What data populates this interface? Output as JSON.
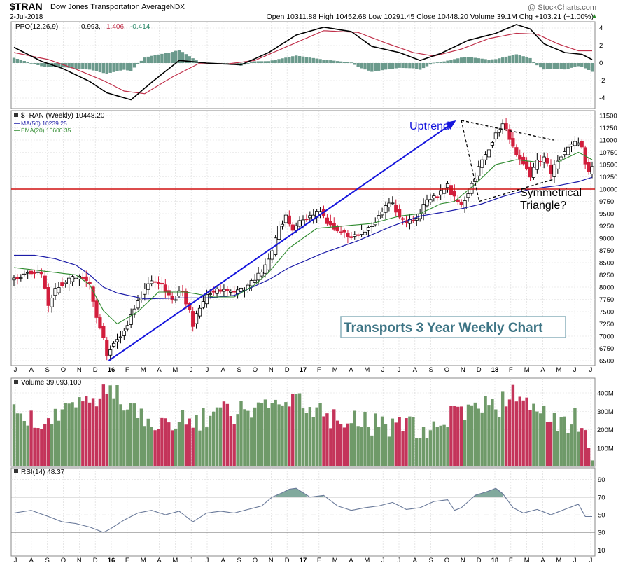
{
  "header": {
    "symbol": "$TRAN",
    "name": "Dow Jones Transportation Average",
    "exchange": "INDX",
    "date": "2-Jul-2018",
    "watermark": "@ StockCharts.com",
    "ohlc": "Open 10311.88  High 10452.68  Low 10291.45  Close 10448.20  Volume 39.1M  Chg +103.21 (+1.00%)",
    "chg_icon": "up-triangle-icon"
  },
  "ppo_panel": {
    "label": "PPO(12,26,9)",
    "v1": "0.993,",
    "v2": "1.406,",
    "v3": "-0.414",
    "ticks": [
      "4",
      "2",
      "0",
      "-2",
      "-4"
    ]
  },
  "price_panel": {
    "label": "$TRAN (Weekly) 10448.20",
    "ma50": "MA(50) 10239.25",
    "ema20": "EMA(20) 10600.35",
    "ticks": [
      "11500",
      "11250",
      "11000",
      "10750",
      "10500",
      "10250",
      "10000",
      "9750",
      "9500",
      "9250",
      "9000",
      "8750",
      "8500",
      "8250",
      "8000",
      "7750",
      "7500",
      "7250",
      "7000",
      "6750",
      "6500"
    ],
    "ann_uptrend": "Uptrend",
    "ann_tri1": "Symmetrical",
    "ann_tri2": "Triangle?",
    "title_box": "Transports 3 Year Weekly Chart"
  },
  "volume_panel": {
    "label": "Volume 39,093,100",
    "ticks": [
      "400M",
      "300M",
      "200M",
      "100M"
    ]
  },
  "rsi_panel": {
    "label": "RSI(14) 48.37",
    "ticks": [
      "90",
      "70",
      "50",
      "30",
      "10"
    ]
  },
  "x_axis": {
    "labels": [
      "J",
      "A",
      "S",
      "O",
      "N",
      "D",
      "16",
      "F",
      "M",
      "A",
      "M",
      "J",
      "J",
      "A",
      "S",
      "O",
      "N",
      "D",
      "17",
      "F",
      "M",
      "A",
      "M",
      "J",
      "J",
      "A",
      "S",
      "O",
      "N",
      "D",
      "18",
      "F",
      "M",
      "A",
      "M",
      "J",
      "J"
    ]
  },
  "colors": {
    "up": "#6a9a6a",
    "down": "#d21e3c",
    "vol_up": "#6f9a69",
    "vol_down": "#c4345a",
    "ppo_hist": "#6b9a8c",
    "ma50": "#1c1ca8",
    "ema20": "#2d8a2d",
    "support": "#d01010",
    "trend": "#1515dd",
    "title_box": "#3e7585",
    "rsi_line": "#6a7a9a"
  },
  "chart_data": {
    "type": "candlestick",
    "title": "Dow Jones Transportation Average (weekly)",
    "ylim": [
      6400,
      11600
    ],
    "support_level": 10000,
    "trend_line": {
      "from": [
        2016.03,
        6500
      ],
      "to": [
        2017.97,
        11400
      ]
    },
    "triangle": {
      "upper": {
        "from": [
          2018.0,
          11400
        ],
        "to": [
          2018.5,
          11000
        ]
      },
      "lower": {
        "from": [
          2018.1,
          9750
        ],
        "to": [
          2018.5,
          10200
        ]
      }
    },
    "ppo_pivots": [
      [
        0,
        1.8
      ],
      [
        8,
        0.2
      ],
      [
        14,
        -0.6
      ],
      [
        22,
        -2.1
      ],
      [
        27,
        -3.4
      ],
      [
        34,
        -4.2
      ],
      [
        40,
        -2.2
      ],
      [
        48,
        0.3
      ],
      [
        56,
        0.0
      ],
      [
        66,
        -0.2
      ],
      [
        74,
        1.2
      ],
      [
        82,
        3.2
      ],
      [
        90,
        4.1
      ],
      [
        98,
        3.6
      ],
      [
        104,
        1.9
      ],
      [
        112,
        1.2
      ],
      [
        118,
        0.3
      ],
      [
        124,
        1.1
      ],
      [
        132,
        2.6
      ],
      [
        140,
        3.4
      ],
      [
        146,
        4.4
      ],
      [
        150,
        3.9
      ],
      [
        154,
        2.2
      ],
      [
        160,
        1.2
      ],
      [
        165,
        1.0
      ],
      [
        168,
        0.4
      ]
    ],
    "ppo_signal_pivots": [
      [
        0,
        1.2
      ],
      [
        10,
        0.4
      ],
      [
        18,
        -0.7
      ],
      [
        26,
        -2.0
      ],
      [
        32,
        -3.2
      ],
      [
        38,
        -3.5
      ],
      [
        46,
        -1.6
      ],
      [
        54,
        0.0
      ],
      [
        62,
        -0.1
      ],
      [
        70,
        0.3
      ],
      [
        80,
        2.0
      ],
      [
        90,
        3.7
      ],
      [
        100,
        3.5
      ],
      [
        108,
        2.3
      ],
      [
        116,
        1.2
      ],
      [
        122,
        0.8
      ],
      [
        130,
        1.6
      ],
      [
        138,
        2.8
      ],
      [
        146,
        3.4
      ],
      [
        152,
        3.3
      ],
      [
        158,
        2.2
      ],
      [
        164,
        1.4
      ],
      [
        168,
        1.4
      ]
    ],
    "price_pivots": [
      [
        0,
        8150
      ],
      [
        4,
        8350
      ],
      [
        8,
        8250
      ],
      [
        10,
        7650
      ],
      [
        13,
        8050
      ],
      [
        16,
        8150
      ],
      [
        19,
        8250
      ],
      [
        22,
        8050
      ],
      [
        24,
        7400
      ],
      [
        26,
        6950
      ],
      [
        27,
        6650
      ],
      [
        29,
        6900
      ],
      [
        32,
        7100
      ],
      [
        36,
        7700
      ],
      [
        40,
        8150
      ],
      [
        43,
        8050
      ],
      [
        46,
        7700
      ],
      [
        49,
        7950
      ],
      [
        52,
        7250
      ],
      [
        55,
        7700
      ],
      [
        57,
        7900
      ],
      [
        60,
        7950
      ],
      [
        64,
        7850
      ],
      [
        68,
        8000
      ],
      [
        71,
        8250
      ],
      [
        73,
        8400
      ],
      [
        75,
        8700
      ],
      [
        77,
        9200
      ],
      [
        79,
        9450
      ],
      [
        81,
        9200
      ],
      [
        84,
        9350
      ],
      [
        87,
        9450
      ],
      [
        89,
        9550
      ],
      [
        92,
        9250
      ],
      [
        95,
        9150
      ],
      [
        97,
        9000
      ],
      [
        99,
        9050
      ],
      [
        102,
        9150
      ],
      [
        104,
        9300
      ],
      [
        106,
        9450
      ],
      [
        108,
        9650
      ],
      [
        110,
        9700
      ],
      [
        112,
        9450
      ],
      [
        114,
        9350
      ],
      [
        116,
        9350
      ],
      [
        118,
        9550
      ],
      [
        120,
        9750
      ],
      [
        123,
        9900
      ],
      [
        126,
        10050
      ],
      [
        128,
        9800
      ],
      [
        130,
        9650
      ],
      [
        132,
        9950
      ],
      [
        134,
        10250
      ],
      [
        136,
        10550
      ],
      [
        138,
        10850
      ],
      [
        141,
        11250
      ],
      [
        142,
        11350
      ],
      [
        144,
        11050
      ],
      [
        146,
        10650
      ],
      [
        148,
        10550
      ],
      [
        150,
        10250
      ],
      [
        152,
        10550
      ],
      [
        154,
        10650
      ],
      [
        156,
        10300
      ],
      [
        158,
        10600
      ],
      [
        160,
        10750
      ],
      [
        162,
        10900
      ],
      [
        164,
        11000
      ],
      [
        165,
        10850
      ],
      [
        166,
        10500
      ],
      [
        167,
        10300
      ],
      [
        168,
        10450
      ]
    ],
    "ma50_pivots": [
      [
        0,
        8650
      ],
      [
        6,
        8650
      ],
      [
        12,
        8580
      ],
      [
        18,
        8450
      ],
      [
        22,
        8250
      ],
      [
        26,
        8000
      ],
      [
        30,
        7880
      ],
      [
        38,
        7760
      ],
      [
        48,
        7780
      ],
      [
        56,
        7780
      ],
      [
        64,
        7830
      ],
      [
        68,
        7960
      ],
      [
        74,
        8150
      ],
      [
        80,
        8400
      ],
      [
        90,
        8700
      ],
      [
        100,
        8950
      ],
      [
        110,
        9250
      ],
      [
        118,
        9450
      ],
      [
        124,
        9520
      ],
      [
        130,
        9600
      ],
      [
        136,
        9700
      ],
      [
        142,
        9850
      ],
      [
        150,
        10000
      ],
      [
        158,
        10070
      ],
      [
        164,
        10150
      ],
      [
        168,
        10240
      ]
    ],
    "ema20_pivots": [
      [
        0,
        8400
      ],
      [
        6,
        8350
      ],
      [
        12,
        8300
      ],
      [
        18,
        8250
      ],
      [
        22,
        8050
      ],
      [
        26,
        7520
      ],
      [
        30,
        7250
      ],
      [
        36,
        7500
      ],
      [
        42,
        7900
      ],
      [
        50,
        7900
      ],
      [
        58,
        7800
      ],
      [
        64,
        7800
      ],
      [
        70,
        8050
      ],
      [
        74,
        8300
      ],
      [
        80,
        8800
      ],
      [
        88,
        9200
      ],
      [
        96,
        9250
      ],
      [
        104,
        9300
      ],
      [
        112,
        9450
      ],
      [
        118,
        9500
      ],
      [
        124,
        9700
      ],
      [
        128,
        9750
      ],
      [
        134,
        10100
      ],
      [
        140,
        10500
      ],
      [
        146,
        10600
      ],
      [
        152,
        10550
      ],
      [
        158,
        10550
      ],
      [
        164,
        10750
      ],
      [
        168,
        10600
      ]
    ],
    "rsi_pivots": [
      [
        0,
        52
      ],
      [
        5,
        55
      ],
      [
        10,
        48
      ],
      [
        14,
        42
      ],
      [
        18,
        40
      ],
      [
        22,
        36
      ],
      [
        26,
        30
      ],
      [
        28,
        34
      ],
      [
        32,
        44
      ],
      [
        36,
        52
      ],
      [
        40,
        55
      ],
      [
        44,
        50
      ],
      [
        48,
        54
      ],
      [
        52,
        42
      ],
      [
        56,
        52
      ],
      [
        60,
        54
      ],
      [
        64,
        52
      ],
      [
        68,
        56
      ],
      [
        72,
        60
      ],
      [
        75,
        70
      ],
      [
        78,
        75
      ],
      [
        80,
        79
      ],
      [
        82,
        80
      ],
      [
        86,
        70
      ],
      [
        90,
        72
      ],
      [
        94,
        60
      ],
      [
        98,
        55
      ],
      [
        102,
        58
      ],
      [
        106,
        60
      ],
      [
        110,
        64
      ],
      [
        114,
        56
      ],
      [
        118,
        58
      ],
      [
        122,
        65
      ],
      [
        126,
        67
      ],
      [
        128,
        55
      ],
      [
        130,
        58
      ],
      [
        134,
        72
      ],
      [
        138,
        77
      ],
      [
        140,
        80
      ],
      [
        142,
        74
      ],
      [
        145,
        58
      ],
      [
        148,
        52
      ],
      [
        152,
        56
      ],
      [
        156,
        50
      ],
      [
        160,
        56
      ],
      [
        164,
        62
      ],
      [
        166,
        48
      ],
      [
        168,
        48
      ]
    ],
    "volume_pivots": [
      [
        0,
        280
      ],
      [
        10,
        260
      ],
      [
        20,
        330
      ],
      [
        26,
        430
      ],
      [
        30,
        380
      ],
      [
        40,
        260
      ],
      [
        50,
        240
      ],
      [
        60,
        290
      ],
      [
        70,
        300
      ],
      [
        76,
        350
      ],
      [
        82,
        370
      ],
      [
        90,
        280
      ],
      [
        100,
        250
      ],
      [
        110,
        220
      ],
      [
        120,
        200
      ],
      [
        130,
        290
      ],
      [
        140,
        330
      ],
      [
        146,
        390
      ],
      [
        150,
        300
      ],
      [
        156,
        260
      ],
      [
        162,
        250
      ],
      [
        166,
        240
      ],
      [
        168,
        40
      ]
    ]
  }
}
